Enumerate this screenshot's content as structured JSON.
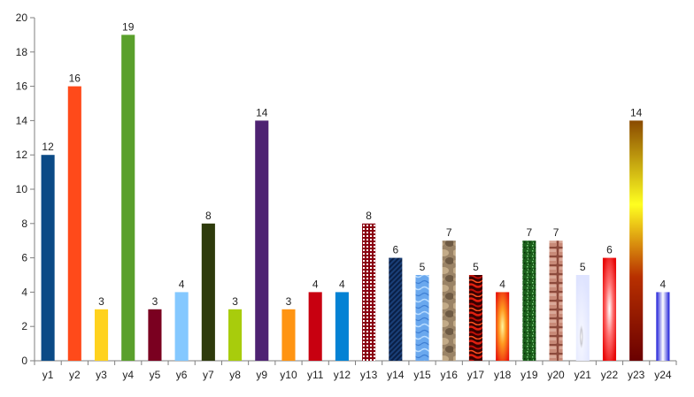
{
  "chart_data": {
    "type": "bar",
    "title": "",
    "xlabel": "",
    "ylabel": "",
    "ylim": [
      0,
      20
    ],
    "yticks": [
      0,
      2,
      4,
      6,
      8,
      10,
      12,
      14,
      16,
      18,
      20
    ],
    "grid": false,
    "legend": "none",
    "categories": [
      "y1",
      "y2",
      "y3",
      "y4",
      "y5",
      "y6",
      "y7",
      "y8",
      "y9",
      "y10",
      "y11",
      "y12",
      "y13",
      "y14",
      "y15",
      "y16",
      "y17",
      "y18",
      "y19",
      "y20",
      "y21",
      "y22",
      "y23",
      "y24"
    ],
    "values": [
      12,
      16,
      3,
      19,
      3,
      4,
      8,
      3,
      14,
      3,
      4,
      4,
      8,
      6,
      5,
      7,
      5,
      4,
      7,
      7,
      5,
      6,
      14,
      4
    ],
    "bar_fills": [
      "#0b4a86",
      "#ff4a1a",
      "#ffd21e",
      "#5aa02c",
      "#7a0020",
      "#84c8ff",
      "#2e3b0c",
      "#a8cc0c",
      "#4e2272",
      "#ff9412",
      "#c80010",
      "#0482d4",
      "pattern:tartan",
      "pattern:diagonal-stripes",
      "pattern:water",
      "pattern:stone",
      "pattern:flames",
      "pattern:glow",
      "pattern:speckled-green",
      "pattern:brick",
      "pattern:pale-sphere",
      "pattern:red-radial",
      "pattern:gold-gradient",
      "pattern:blue-cylinder"
    ]
  }
}
